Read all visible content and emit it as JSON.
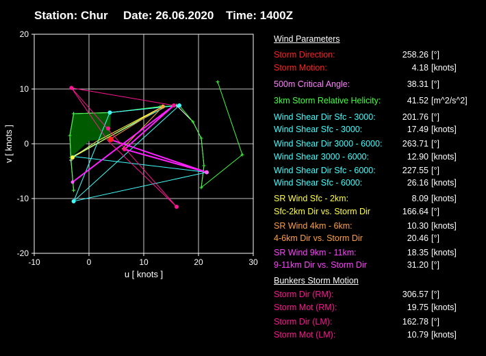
{
  "header": {
    "station": "Station: Chur",
    "date": "Date: 26.06.2020",
    "time": "Time: 1400Z"
  },
  "colors": {
    "red": "#ff2020",
    "pink": "#ff60ff",
    "green": "#40ff40",
    "cyan": "#40ffff",
    "yellow": "#ffff40",
    "orange": "#ffa040",
    "magenta": "#ff20ff",
    "crimson": "#ff1493",
    "white": "#ffffff"
  },
  "wind_parameters": {
    "title": "Wind Parameters",
    "rows": [
      {
        "label": "Storm Direction:",
        "value": "258.26",
        "unit": "[°]",
        "color": "#ff2020"
      },
      {
        "label": "Storm Motion:",
        "value": "4.18",
        "unit": "[knots]",
        "color": "#ff2020"
      },
      {
        "label": "500m Critical Angle:",
        "value": "38.31",
        "unit": "[°]",
        "color": "#ff80ff"
      },
      {
        "label": "3km Storm Relative Helicity:",
        "value": "41.52",
        "unit": "[m^2/s^2]",
        "color": "#40ff40"
      },
      {
        "label": "Wind Shear Dir Sfc - 3000:",
        "value": "201.76",
        "unit": "[°]",
        "color": "#40ffff"
      },
      {
        "label": "Wind Shear Sfc - 3000:",
        "value": "17.49",
        "unit": "[knots]",
        "color": "#40ffff"
      },
      {
        "label": "Wind Shear Dir 3000 - 6000:",
        "value": "263.71",
        "unit": "[°]",
        "color": "#40ffff"
      },
      {
        "label": "Wind Shear 3000 - 6000:",
        "value": "12.90",
        "unit": "[knots]",
        "color": "#40ffff"
      },
      {
        "label": "Wind Shear Dir Sfc - 6000:",
        "value": "227.55",
        "unit": "[°]",
        "color": "#40ffff"
      },
      {
        "label": "Wind Shear Sfc - 6000:",
        "value": "26.16",
        "unit": "[knots]",
        "color": "#40ffff"
      },
      {
        "label": "SR Wind Sfc - 2km:",
        "value": "8.09",
        "unit": "[knots]",
        "color": "#ffff40"
      },
      {
        "label": "Sfc-2km Dir vs. Storm Dir",
        "value": "166.64",
        "unit": "[°]",
        "color": "#ffff40"
      },
      {
        "label": "SR Wind 4km - 6km:",
        "value": "10.30",
        "unit": "[knots]",
        "color": "#ffa040"
      },
      {
        "label": "4-6km Dir vs. Storm Dir",
        "value": "20.46",
        "unit": "[°]",
        "color": "#ffa040"
      },
      {
        "label": "SR Wind 9km - 11km:",
        "value": "18.35",
        "unit": "[knots]",
        "color": "#ff40ff"
      },
      {
        "label": "9-11km Dir vs. Storm Dir",
        "value": "31.20",
        "unit": "[°]",
        "color": "#ff40ff"
      }
    ]
  },
  "bunkers": {
    "title": "Bunkers Storm Motion",
    "rows": [
      {
        "label": "Storm Dir (RM):",
        "value": "306.57",
        "unit": "[°]",
        "color": "#ff1493"
      },
      {
        "label": "Storm Mot (RM):",
        "value": "19.75",
        "unit": "[knots]",
        "color": "#ff1493"
      },
      {
        "label": "Storm Dir (LM):",
        "value": "162.78",
        "unit": "[°]",
        "color": "#ff1493"
      },
      {
        "label": "Storm Mot (LM):",
        "value": "10.79",
        "unit": "[knots]",
        "color": "#ff1493"
      }
    ]
  },
  "chart_data": {
    "type": "line",
    "xlabel": "u  [ knots ]",
    "ylabel": "v  [ knots ]",
    "xlim": [
      -10,
      30
    ],
    "ylim": [
      -20,
      20
    ],
    "xticks": [
      -10,
      0,
      10,
      20,
      30
    ],
    "yticks": [
      -20,
      -10,
      0,
      10,
      20
    ],
    "grid": true,
    "helicity_area": [
      [
        -3.3,
        -2.5
      ],
      [
        -3.5,
        1.5
      ],
      [
        -2.8,
        5.5
      ],
      [
        4,
        5.7
      ],
      [
        3.8,
        0.9
      ],
      [
        0,
        0.5
      ]
    ],
    "series": [
      {
        "color": "#ffffff",
        "points": [
          [
            -2.8,
            -8.5
          ],
          [
            -3.3,
            -3
          ],
          [
            -3.5,
            1.5
          ],
          [
            -2.8,
            5.5
          ],
          [
            4,
            5.7
          ],
          [
            16,
            7
          ],
          [
            19,
            4
          ],
          [
            20.5,
            1
          ],
          [
            21,
            -4
          ],
          [
            20.5,
            -8
          ]
        ]
      },
      {
        "color": "#40ff40",
        "points": [
          [
            -2.8,
            -8.5
          ],
          [
            -3.3,
            -2.5
          ],
          [
            -3.5,
            1.5
          ],
          [
            -2.8,
            5.5
          ],
          [
            4,
            5.7
          ],
          [
            13,
            6.8
          ],
          [
            16.5,
            7
          ],
          [
            19,
            4
          ],
          [
            20.5,
            1
          ],
          [
            21,
            -4
          ],
          [
            20.5,
            -8
          ],
          [
            28,
            -2
          ],
          [
            23.5,
            11.3
          ]
        ]
      },
      {
        "color": "#40ffff",
        "points": [
          [
            -2.8,
            -10.5
          ],
          [
            3.8,
            5.7
          ],
          [
            16.5,
            7
          ],
          [
            -2.8,
            -10.5
          ],
          [
            21.5,
            -5.2
          ],
          [
            -3,
            -2.3
          ],
          [
            13.5,
            6.5
          ]
        ]
      },
      {
        "color": "#ffff40",
        "points": [
          [
            -3,
            -2.5
          ],
          [
            1.5,
            0.5
          ],
          [
            13.5,
            6.8
          ],
          [
            -3,
            -2.5
          ]
        ]
      },
      {
        "color": "#ffa040",
        "points": [
          [
            3.8,
            0.8
          ],
          [
            13.5,
            6.8
          ],
          [
            6,
            -1
          ],
          [
            13.5,
            6.8
          ]
        ]
      },
      {
        "color": "#ff20ff",
        "points": [
          [
            3.8,
            0.8
          ],
          [
            21.5,
            -5.2
          ],
          [
            6.5,
            -1
          ],
          [
            15.5,
            7
          ],
          [
            -3,
            -7
          ]
        ]
      },
      {
        "color": "#ff1493",
        "points": [
          [
            -3.2,
            10.2
          ],
          [
            3.5,
            0.5
          ],
          [
            16,
            -11.5
          ],
          [
            -3.2,
            10.2
          ],
          [
            15.5,
            7
          ]
        ]
      }
    ],
    "markers": [
      {
        "color": "#ff2020",
        "x": 4,
        "y": 0.8,
        "r": 4
      },
      {
        "color": "#ff1493",
        "x": -3.2,
        "y": 10.2,
        "r": 3
      },
      {
        "color": "#ff1493",
        "x": 16,
        "y": -11.5,
        "r": 3
      },
      {
        "color": "#ff1493",
        "x": 15.5,
        "y": 7,
        "r": 3
      },
      {
        "color": "#ff1493",
        "x": 6.5,
        "y": -1,
        "r": 3
      },
      {
        "color": "#ff1493",
        "x": 3.5,
        "y": 2.8,
        "r": 3
      },
      {
        "color": "#ff60ff",
        "x": -3,
        "y": -7,
        "r": 2.5
      },
      {
        "color": "#ff60ff",
        "x": 21.5,
        "y": -5.2,
        "r": 3
      },
      {
        "color": "#40ffff",
        "x": 3.8,
        "y": 5.7,
        "r": 3
      },
      {
        "color": "#40ffff",
        "x": 16.5,
        "y": 7,
        "r": 3
      },
      {
        "color": "#40ffff",
        "x": -2.8,
        "y": -10.5,
        "r": 3
      },
      {
        "color": "#ffff40",
        "x": -3,
        "y": -2.5,
        "r": 3
      },
      {
        "color": "#ffa040",
        "x": 13.5,
        "y": 6.8,
        "r": 3
      }
    ]
  }
}
